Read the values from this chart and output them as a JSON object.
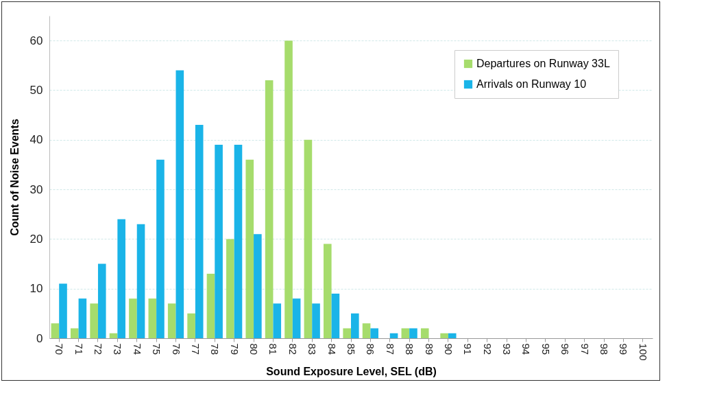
{
  "chart_data": {
    "type": "bar",
    "xlabel": "Sound Exposure Level, SEL (dB)",
    "ylabel": "Count of Noise Events",
    "categories": [
      "70",
      "71",
      "72",
      "73",
      "74",
      "75",
      "76",
      "77",
      "78",
      "79",
      "80",
      "81",
      "82",
      "83",
      "84",
      "85",
      "86",
      "87",
      "88",
      "89",
      "90",
      "91",
      "92",
      "93",
      "94",
      "95",
      "96",
      "97",
      "98",
      "99",
      "100"
    ],
    "series": [
      {
        "name": "Departures on Runway 33L",
        "color": "#a6dc6c",
        "values": [
          3,
          2,
          7,
          1,
          8,
          8,
          7,
          5,
          13,
          20,
          36,
          52,
          60,
          40,
          19,
          2,
          3,
          0,
          2,
          2,
          1,
          0,
          0,
          0,
          0,
          0,
          0,
          0,
          0,
          0,
          0
        ]
      },
      {
        "name": "Arrivals on Runway 10",
        "color": "#1ab4e8",
        "values": [
          11,
          8,
          15,
          24,
          23,
          36,
          54,
          43,
          39,
          39,
          21,
          7,
          8,
          7,
          9,
          5,
          2,
          1,
          2,
          0,
          1,
          0,
          0,
          0,
          0,
          0,
          0,
          0,
          0,
          0,
          0
        ]
      }
    ],
    "ylim": [
      0,
      65
    ],
    "yticks": [
      0,
      10,
      20,
      30,
      40,
      50,
      60
    ],
    "grid": "y",
    "legend": "top right"
  }
}
